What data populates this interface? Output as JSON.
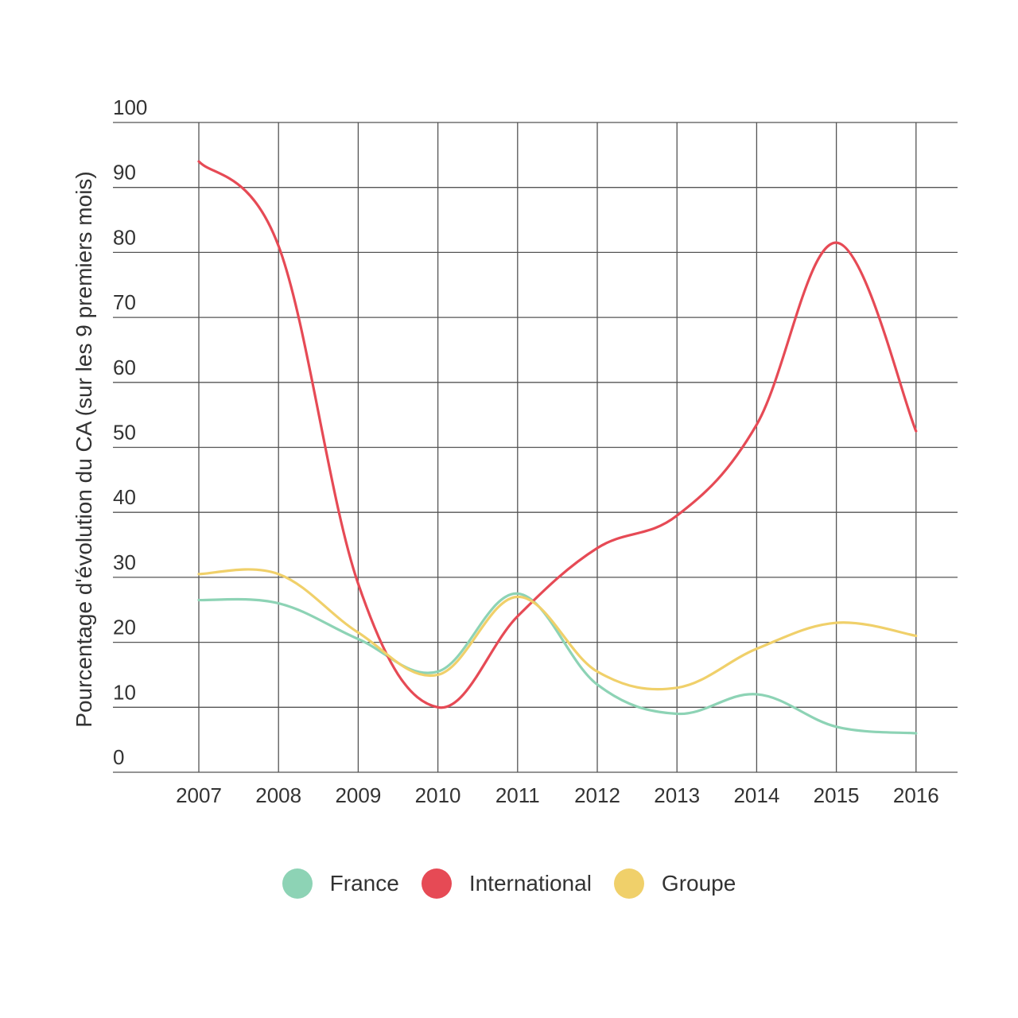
{
  "chart_data": {
    "type": "line",
    "title": "",
    "xlabel": "",
    "ylabel": "Pourcentage d'évolution du CA (sur les 9 premiers mois)",
    "categories": [
      "2007",
      "2008",
      "2009",
      "2010",
      "2011",
      "2012",
      "2013",
      "2014",
      "2015",
      "2016"
    ],
    "ylim": [
      0,
      100
    ],
    "yticks": [
      0,
      10,
      20,
      30,
      40,
      50,
      60,
      70,
      80,
      90,
      100
    ],
    "grid": true,
    "legend_position": "bottom-center",
    "series": [
      {
        "name": "France",
        "color": "#8dd3b5",
        "values": [
          26.5,
          26,
          20.5,
          15.5,
          27.5,
          13.5,
          9,
          12,
          7,
          6
        ]
      },
      {
        "name": "International",
        "color": "#e64a55",
        "values": [
          94,
          81,
          29,
          10,
          24,
          34.5,
          39.5,
          53.5,
          81.5,
          52.5
        ]
      },
      {
        "name": "Groupe",
        "color": "#f0d06a",
        "values": [
          30.5,
          30.5,
          21.5,
          15,
          27,
          15.5,
          13,
          19,
          23,
          21
        ]
      }
    ]
  }
}
